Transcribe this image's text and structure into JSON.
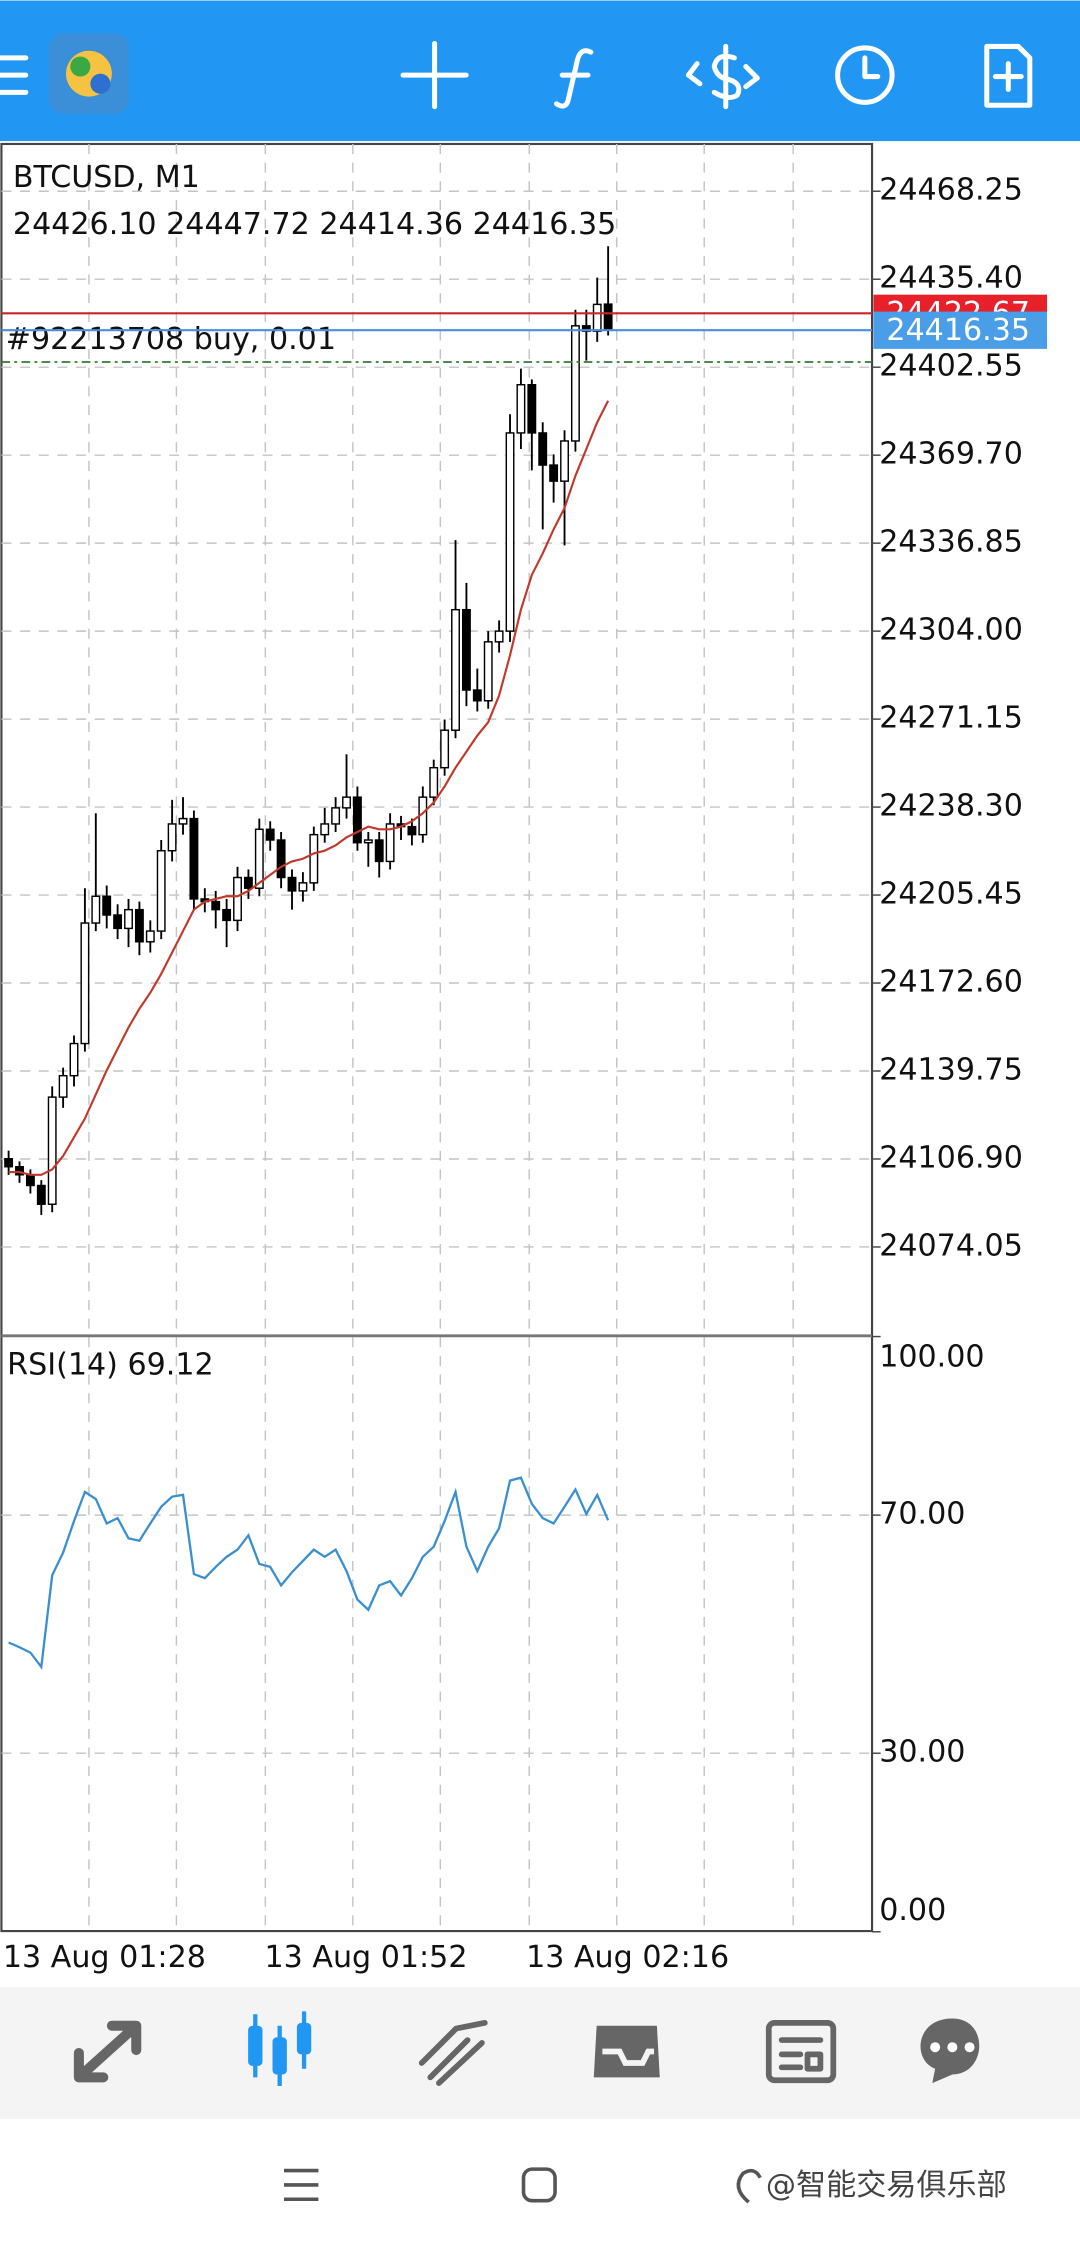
{
  "chart_data": [
    {
      "type": "candlestick",
      "title": "BTCUSD, M1",
      "subtitle": "24426.10 24447.72 24414.36 24416.35",
      "order": {
        "label": "#92213708 buy, 0.01",
        "value": 24404.5,
        "color": "#2e7d32"
      },
      "price_lines": [
        {
          "value": 24422.67,
          "color": "#c62828",
          "box": "#e8202a"
        },
        {
          "value": 24416.35,
          "color": "#4a90d9",
          "box": "#4a9ee8"
        }
      ],
      "ylim": [
        24041.4,
        24485.9
      ],
      "yticks": [
        24468.25,
        {
          "value": 24435.4,
          "label": "24435.40"
        },
        24402.55,
        {
          "value": 24369.7,
          "label": "24369.70"
        },
        24336.85,
        {
          "value": 24304,
          "label": "24304.00"
        },
        24271.15,
        {
          "value": 24238.3,
          "label": "24238.30"
        },
        24205.45,
        {
          "value": 24172.6,
          "label": "24172.60"
        },
        24139.75,
        {
          "value": 24106.9,
          "label": "24106.90"
        },
        24074.05
      ],
      "grid": true,
      "open": [
        24107,
        24104,
        24101,
        24097,
        24090,
        24130,
        24138,
        24150,
        24195,
        24205,
        24198,
        24193,
        24200,
        24188,
        24192,
        24222,
        24232,
        24234,
        24204,
        24203,
        24200,
        24196,
        24212,
        24208,
        24230,
        24226,
        24212,
        24207,
        24210,
        24228,
        24232,
        24238,
        24242,
        24225,
        24226,
        24218,
        24232,
        24231,
        24228,
        24242,
        24253,
        24267,
        24312,
        24282,
        24278,
        24300,
        24304,
        24378,
        24396,
        24378,
        24366,
        24360,
        24375,
        24418,
        24416,
        24426.1
      ],
      "high": [
        24110,
        24106,
        24103,
        24099,
        24134,
        24141,
        24153,
        24208,
        24236,
        24209,
        24202,
        24204,
        24203,
        24196,
        24226,
        24241,
        24242,
        24237,
        24208,
        24207,
        24204,
        24216,
        24215,
        24234,
        24233,
        24229,
        24215,
        24214,
        24231,
        24238,
        24242,
        24258,
        24246,
        24229,
        24229,
        24236,
        24235,
        24234,
        24246,
        24256,
        24271,
        24338,
        24322,
        24290,
        24304,
        24308,
        24385,
        24402,
        24398,
        24382,
        24370,
        24379,
        24424,
        24424,
        24436,
        24447.72
      ],
      "low": [
        24101,
        24098,
        24094,
        24086,
        24087,
        24126,
        24134,
        24147,
        24192,
        24193,
        24189,
        24186,
        24183,
        24184,
        24189,
        24218,
        24228,
        24200,
        24199,
        24193,
        24186,
        24192,
        24204,
        24205,
        24222,
        24208,
        24200,
        24203,
        24207,
        24225,
        24229,
        24234,
        24222,
        24216,
        24212,
        24215,
        24226,
        24224,
        24225,
        24239,
        24250,
        24264,
        24276,
        24274,
        24275,
        24296,
        24300,
        24372,
        24364,
        24342,
        24352,
        24336,
        24371,
        24405,
        24412,
        24414.36
      ],
      "close": [
        24104,
        24101,
        24097,
        24090,
        24130,
        24138,
        24150,
        24195,
        24205,
        24198,
        24193,
        24200,
        24188,
        24192,
        24222,
        24232,
        24234,
        24204,
        24203,
        24200,
        24196,
        24212,
        24208,
        24230,
        24226,
        24212,
        24207,
        24210,
        24228,
        24232,
        24238,
        24242,
        24225,
        24226,
        24218,
        24232,
        24231,
        24228,
        24242,
        24253,
        24267,
        24312,
        24282,
        24278,
        24300,
        24304,
        24378,
        24396,
        24378,
        24366,
        24360,
        24375,
        24418,
        24416,
        24426,
        24416.35
      ],
      "ma": {
        "color": "#c0392b",
        "values": [
          24102,
          24102,
          24101,
          24101,
          24103,
          24108,
          24115,
          24122,
          24131,
          24140,
          24148,
          24156,
          24163,
          24169,
          24176,
          24184,
          24192,
          24200,
          24203,
          24204,
          24205,
          24205,
          24207,
          24210,
          24213,
          24216,
          24218,
          24219,
          24221,
          24222,
          24224,
          24227,
          24229,
          24231,
          24230,
          24230,
          24231,
          24233,
          24236,
          24240,
          24246,
          24253,
          24259,
          24265,
          24270,
          24280,
          24295,
          24312,
          24325,
          24333,
          24342,
          24350,
          24362,
          24372,
          24382,
          24390
        ]
      }
    },
    {
      "type": "line",
      "title": "RSI(14) 69.12",
      "color": "#3a8fd0",
      "categories": [
        "13 Aug 01:28",
        null,
        null,
        null,
        null,
        null,
        null,
        null,
        null,
        null,
        null,
        null,
        null,
        null,
        null,
        null,
        null,
        null,
        null,
        null,
        null,
        null,
        null,
        null,
        "13 Aug 01:52",
        null,
        null,
        null,
        null,
        null,
        null,
        null,
        null,
        null,
        null,
        null,
        null,
        null,
        null,
        null,
        null,
        null,
        null,
        null,
        null,
        null,
        null,
        null,
        "13 Aug 02:16",
        null,
        null,
        null,
        null,
        null,
        null,
        null
      ],
      "values": [
        48.6,
        47.8,
        46.9,
        44.5,
        59.9,
        63.7,
        69.0,
        73.9,
        72.7,
        68.6,
        69.5,
        66.1,
        65.7,
        68.6,
        71.4,
        73.1,
        73.4,
        60.1,
        59.4,
        61.3,
        63.0,
        64.2,
        66.6,
        61.8,
        61.3,
        58.2,
        60.4,
        62.3,
        64.2,
        63.0,
        64.2,
        60.6,
        55.8,
        54.1,
        58.2,
        58.9,
        56.5,
        59.4,
        63.0,
        64.7,
        69.0,
        73.9,
        64.7,
        60.6,
        64.7,
        67.8,
        75.8,
        76.3,
        71.9,
        69.5,
        68.6,
        71.4,
        74.3,
        70.2,
        73.4,
        69.12
      ],
      "ylim": [
        0,
        100
      ],
      "yticks": [
        {
          "value": 100,
          "label": "100.00"
        },
        {
          "value": 70,
          "label": "70.00"
        },
        {
          "value": 30,
          "label": "30.00"
        },
        {
          "value": 0,
          "label": "0.00"
        }
      ],
      "grid": true
    }
  ],
  "watermark": "@智能交易俱乐部"
}
